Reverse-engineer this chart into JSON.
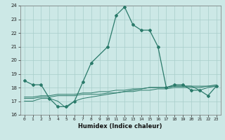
{
  "x": [
    0,
    1,
    2,
    3,
    4,
    5,
    6,
    7,
    8,
    9,
    10,
    11,
    12,
    13,
    14,
    15,
    16,
    17,
    18,
    19,
    20,
    21,
    22,
    23
  ],
  "line1": [
    18.5,
    18.2,
    18.2,
    17.2,
    16.6,
    16.6,
    17.0,
    18.4,
    19.8,
    null,
    21.0,
    23.3,
    23.9,
    22.6,
    22.2,
    22.2,
    21.0,
    18.0,
    18.2,
    18.2,
    17.8,
    17.8,
    17.4,
    18.1
  ],
  "line2": [
    17.0,
    17.0,
    17.2,
    17.2,
    17.0,
    16.5,
    17.0,
    17.2,
    17.3,
    17.4,
    17.5,
    17.6,
    17.7,
    17.8,
    17.9,
    18.0,
    18.0,
    18.0,
    18.1,
    18.1,
    18.1,
    17.8,
    18.0,
    18.1
  ],
  "line3": [
    17.2,
    17.2,
    17.3,
    17.3,
    17.4,
    17.4,
    17.4,
    17.5,
    17.5,
    17.5,
    17.6,
    17.6,
    17.7,
    17.7,
    17.8,
    17.8,
    17.9,
    17.9,
    18.0,
    18.0,
    18.0,
    18.0,
    18.1,
    18.1
  ],
  "line4": [
    17.3,
    17.3,
    17.4,
    17.4,
    17.5,
    17.5,
    17.5,
    17.6,
    17.6,
    17.7,
    17.7,
    17.8,
    17.8,
    17.9,
    17.9,
    18.0,
    18.0,
    18.0,
    18.1,
    18.1,
    18.1,
    18.1,
    18.1,
    18.2
  ],
  "bg_color": "#cce8e6",
  "grid_color": "#a8ceca",
  "line_color": "#2a7a6a",
  "ylim": [
    16,
    24
  ],
  "xlim": [
    -0.5,
    23.5
  ],
  "xlabel": "Humidex (Indice chaleur)",
  "yticks": [
    16,
    17,
    18,
    19,
    20,
    21,
    22,
    23,
    24
  ],
  "xticks": [
    0,
    1,
    2,
    3,
    4,
    5,
    6,
    7,
    8,
    9,
    10,
    11,
    12,
    13,
    14,
    15,
    16,
    17,
    18,
    19,
    20,
    21,
    22,
    23
  ]
}
